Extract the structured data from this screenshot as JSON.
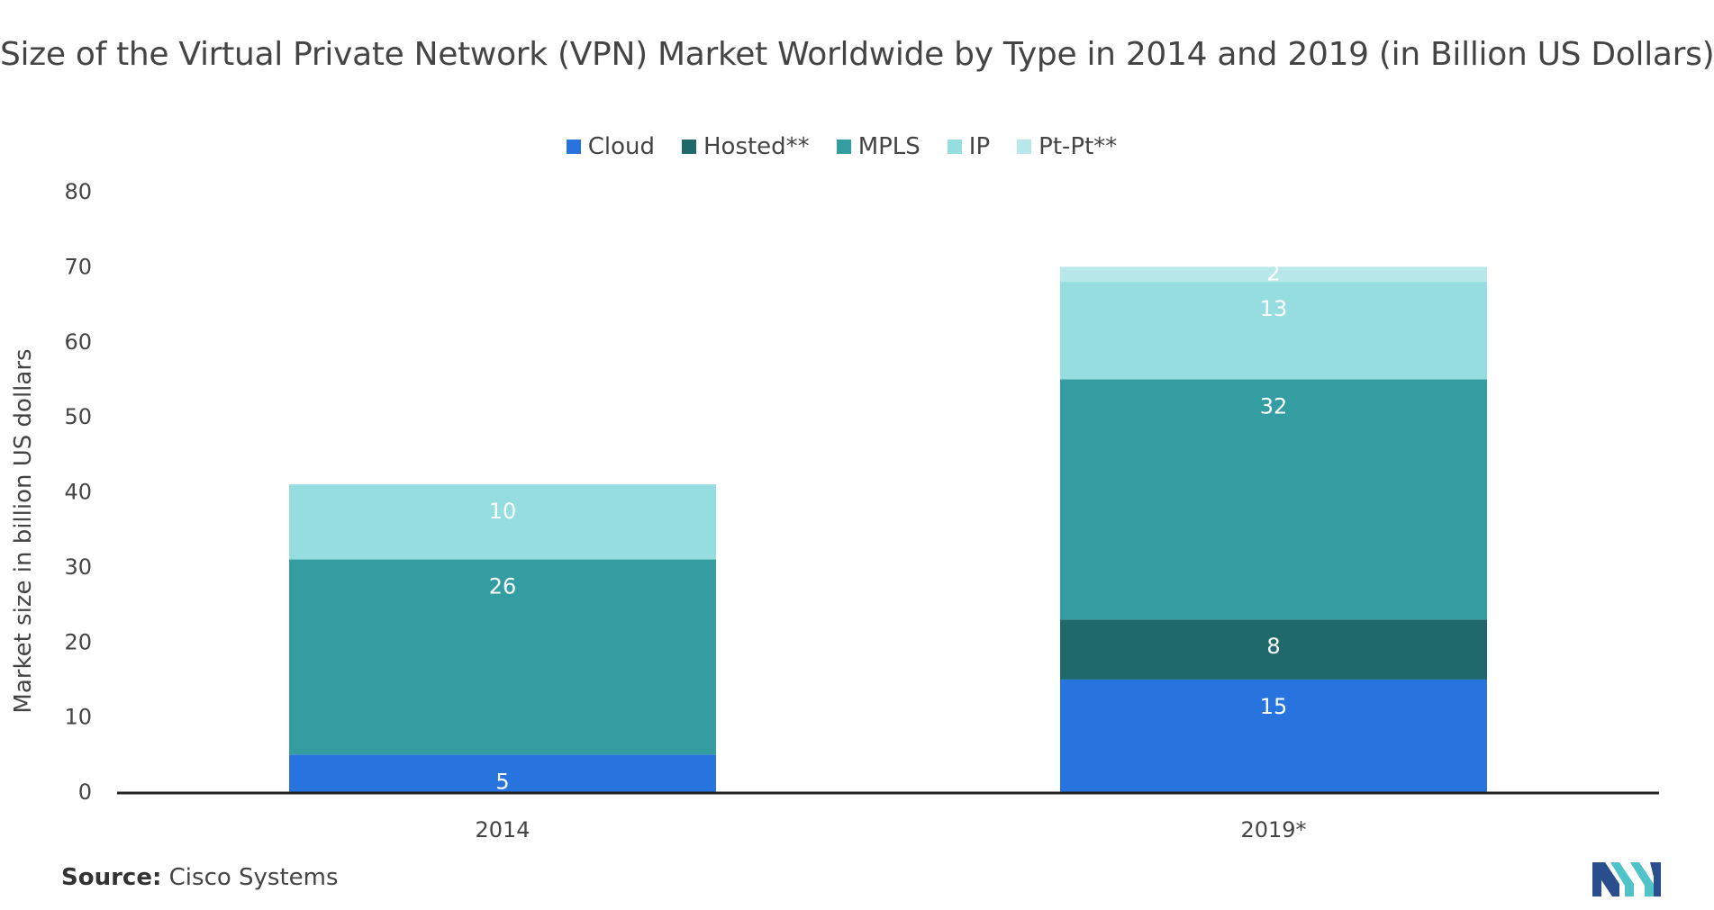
{
  "chart_data": {
    "type": "bar",
    "stacked": true,
    "title": "Size of the Virtual Private Network (VPN) Market Worldwide by Type in 2014 and 2019 (in Billion US Dollars)",
    "xlabel": "",
    "ylabel": "Market size in billion US dollars",
    "categories": [
      "2014",
      "2019*"
    ],
    "ylim": [
      0,
      80
    ],
    "yticks": [
      0,
      10,
      20,
      30,
      40,
      50,
      60,
      70,
      80
    ],
    "grid": false,
    "legend_position": "top-center",
    "series": [
      {
        "name": "Cloud",
        "color": "#2874df",
        "values": [
          5,
          15
        ]
      },
      {
        "name": "Hosted**",
        "color": "#20696b",
        "values": [
          0,
          8
        ]
      },
      {
        "name": "MPLS",
        "color": "#349da1",
        "values": [
          26,
          32
        ]
      },
      {
        "name": "IP",
        "color": "#96dde0",
        "values": [
          10,
          13
        ]
      },
      {
        "name": "Pt-Pt**",
        "color": "#b9e8ea",
        "values": [
          0,
          2
        ]
      }
    ]
  },
  "source": {
    "label": "Source:",
    "text": "Cisco Systems"
  },
  "logo": {
    "icon": "mordor-logo-icon",
    "colors": [
      "#2b4f8c",
      "#4fc3c7"
    ]
  }
}
